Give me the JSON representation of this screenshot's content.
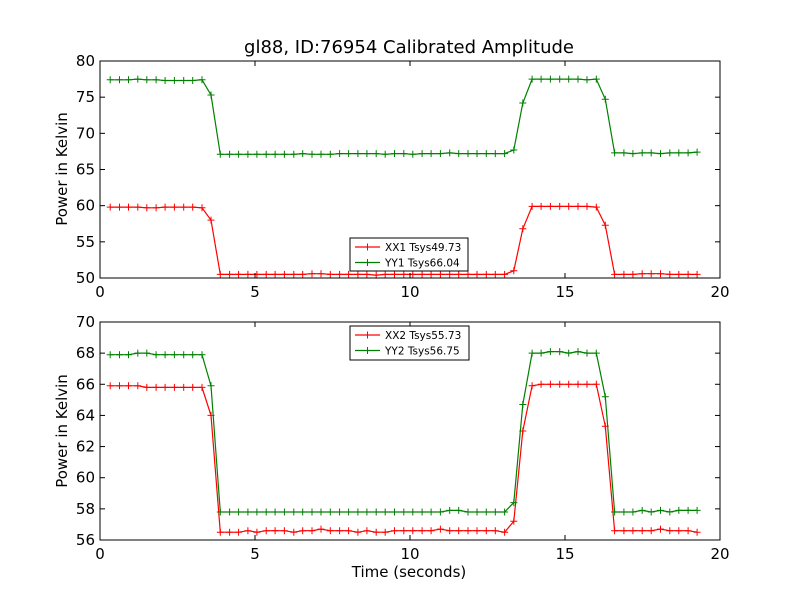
{
  "chart_data": [
    {
      "type": "line",
      "title": "gl88, ID:76954 Calibrated Amplitude",
      "xlabel": "",
      "ylabel": "Power in Kelvin",
      "xlim": [
        0,
        20
      ],
      "ylim": [
        50,
        80
      ],
      "xticks": [
        0,
        5,
        10,
        15,
        20
      ],
      "yticks": [
        50,
        55,
        60,
        65,
        70,
        75,
        80
      ],
      "legend_position": "bottom-center",
      "series": [
        {
          "name": "XX1 Tsys49.73",
          "color": "#ff0000",
          "marker": "plus",
          "x": [
            0.33,
            0.63,
            0.92,
            1.22,
            1.51,
            1.81,
            2.1,
            2.4,
            2.7,
            2.99,
            3.29,
            3.58,
            3.88,
            4.18,
            4.47,
            4.77,
            5.06,
            5.36,
            5.65,
            5.95,
            6.25,
            6.54,
            6.84,
            7.13,
            7.43,
            7.73,
            8.02,
            8.32,
            8.61,
            8.91,
            9.2,
            9.5,
            9.8,
            10.09,
            10.39,
            10.68,
            10.98,
            11.28,
            11.57,
            11.87,
            12.16,
            12.46,
            12.75,
            13.05,
            13.35,
            13.64,
            13.94,
            14.23,
            14.53,
            14.83,
            15.12,
            15.42,
            15.71,
            16.01,
            16.3,
            16.6,
            16.9,
            17.19,
            17.49,
            17.78,
            18.08,
            18.38,
            18.67,
            18.97,
            19.26
          ],
          "y": [
            59.8,
            59.8,
            59.8,
            59.8,
            59.7,
            59.7,
            59.8,
            59.8,
            59.8,
            59.8,
            59.7,
            58.0,
            50.5,
            50.5,
            50.5,
            50.5,
            50.5,
            50.5,
            50.5,
            50.5,
            50.5,
            50.5,
            50.6,
            50.6,
            50.5,
            50.5,
            50.5,
            50.5,
            50.5,
            50.4,
            50.5,
            50.5,
            50.5,
            50.5,
            50.5,
            50.5,
            50.5,
            50.5,
            50.5,
            50.5,
            50.5,
            50.5,
            50.5,
            50.5,
            51.0,
            56.8,
            59.9,
            59.9,
            59.9,
            59.9,
            59.9,
            59.9,
            59.9,
            59.8,
            57.3,
            50.5,
            50.5,
            50.5,
            50.6,
            50.6,
            50.6,
            50.5,
            50.5,
            50.5,
            50.5
          ]
        },
        {
          "name": "YY1 Tsys66.04",
          "color": "#008000",
          "marker": "plus",
          "x": [
            0.33,
            0.63,
            0.92,
            1.22,
            1.51,
            1.81,
            2.1,
            2.4,
            2.7,
            2.99,
            3.29,
            3.58,
            3.88,
            4.18,
            4.47,
            4.77,
            5.06,
            5.36,
            5.65,
            5.95,
            6.25,
            6.54,
            6.84,
            7.13,
            7.43,
            7.73,
            8.02,
            8.32,
            8.61,
            8.91,
            9.2,
            9.5,
            9.8,
            10.09,
            10.39,
            10.68,
            10.98,
            11.28,
            11.57,
            11.87,
            12.16,
            12.46,
            12.75,
            13.05,
            13.35,
            13.64,
            13.94,
            14.23,
            14.53,
            14.83,
            15.12,
            15.42,
            15.71,
            16.01,
            16.3,
            16.6,
            16.9,
            17.19,
            17.49,
            17.78,
            18.08,
            18.38,
            18.67,
            18.97,
            19.26
          ],
          "y": [
            77.4,
            77.4,
            77.4,
            77.5,
            77.4,
            77.4,
            77.3,
            77.3,
            77.3,
            77.3,
            77.4,
            75.3,
            67.1,
            67.1,
            67.1,
            67.1,
            67.1,
            67.1,
            67.1,
            67.1,
            67.1,
            67.2,
            67.1,
            67.1,
            67.1,
            67.2,
            67.2,
            67.2,
            67.2,
            67.2,
            67.1,
            67.2,
            67.2,
            67.1,
            67.2,
            67.2,
            67.2,
            67.3,
            67.2,
            67.2,
            67.2,
            67.2,
            67.2,
            67.2,
            67.7,
            74.2,
            77.5,
            77.5,
            77.5,
            77.5,
            77.5,
            77.5,
            77.4,
            77.5,
            74.7,
            67.3,
            67.3,
            67.2,
            67.3,
            67.3,
            67.2,
            67.3,
            67.3,
            67.3,
            67.4
          ]
        }
      ]
    },
    {
      "type": "line",
      "title": "",
      "xlabel": "Time (seconds)",
      "ylabel": "Power in Kelvin",
      "xlim": [
        0,
        20
      ],
      "ylim": [
        56,
        70
      ],
      "xticks": [
        0,
        5,
        10,
        15,
        20
      ],
      "yticks": [
        56,
        58,
        60,
        62,
        64,
        66,
        68,
        70
      ],
      "legend_position": "top-center",
      "series": [
        {
          "name": "XX2 Tsys55.73",
          "color": "#ff0000",
          "marker": "plus",
          "x": [
            0.33,
            0.63,
            0.92,
            1.22,
            1.51,
            1.81,
            2.1,
            2.4,
            2.7,
            2.99,
            3.29,
            3.58,
            3.88,
            4.18,
            4.47,
            4.77,
            5.06,
            5.36,
            5.65,
            5.95,
            6.25,
            6.54,
            6.84,
            7.13,
            7.43,
            7.73,
            8.02,
            8.32,
            8.61,
            8.91,
            9.2,
            9.5,
            9.8,
            10.09,
            10.39,
            10.68,
            10.98,
            11.28,
            11.57,
            11.87,
            12.16,
            12.46,
            12.75,
            13.05,
            13.35,
            13.64,
            13.94,
            14.23,
            14.53,
            14.83,
            15.12,
            15.42,
            15.71,
            16.01,
            16.3,
            16.6,
            16.9,
            17.19,
            17.49,
            17.78,
            18.08,
            18.38,
            18.67,
            18.97,
            19.26
          ],
          "y": [
            65.9,
            65.9,
            65.9,
            65.9,
            65.8,
            65.8,
            65.8,
            65.8,
            65.8,
            65.8,
            65.8,
            64.0,
            56.5,
            56.5,
            56.5,
            56.6,
            56.5,
            56.6,
            56.6,
            56.6,
            56.5,
            56.6,
            56.6,
            56.7,
            56.6,
            56.6,
            56.6,
            56.5,
            56.6,
            56.5,
            56.5,
            56.6,
            56.6,
            56.6,
            56.6,
            56.6,
            56.7,
            56.6,
            56.6,
            56.6,
            56.6,
            56.6,
            56.6,
            56.5,
            57.2,
            63.0,
            65.9,
            66.0,
            66.0,
            66.0,
            66.0,
            66.0,
            66.0,
            66.0,
            63.3,
            56.6,
            56.6,
            56.6,
            56.6,
            56.6,
            56.7,
            56.6,
            56.6,
            56.6,
            56.5
          ]
        },
        {
          "name": "YY2 Tsys56.75",
          "color": "#008000",
          "marker": "plus",
          "x": [
            0.33,
            0.63,
            0.92,
            1.22,
            1.51,
            1.81,
            2.1,
            2.4,
            2.7,
            2.99,
            3.29,
            3.58,
            3.88,
            4.18,
            4.47,
            4.77,
            5.06,
            5.36,
            5.65,
            5.95,
            6.25,
            6.54,
            6.84,
            7.13,
            7.43,
            7.73,
            8.02,
            8.32,
            8.61,
            8.91,
            9.2,
            9.5,
            9.8,
            10.09,
            10.39,
            10.68,
            10.98,
            11.28,
            11.57,
            11.87,
            12.16,
            12.46,
            12.75,
            13.05,
            13.35,
            13.64,
            13.94,
            14.23,
            14.53,
            14.83,
            15.12,
            15.42,
            15.71,
            16.01,
            16.3,
            16.6,
            16.9,
            17.19,
            17.49,
            17.78,
            18.08,
            18.38,
            18.67,
            18.97,
            19.26
          ],
          "y": [
            67.9,
            67.9,
            67.9,
            68.0,
            68.0,
            67.9,
            67.9,
            67.9,
            67.9,
            67.9,
            67.9,
            65.9,
            57.8,
            57.8,
            57.8,
            57.8,
            57.8,
            57.8,
            57.8,
            57.8,
            57.8,
            57.8,
            57.8,
            57.8,
            57.8,
            57.8,
            57.8,
            57.8,
            57.8,
            57.8,
            57.8,
            57.8,
            57.8,
            57.8,
            57.8,
            57.8,
            57.8,
            57.9,
            57.9,
            57.8,
            57.8,
            57.8,
            57.8,
            57.8,
            58.4,
            64.7,
            68.0,
            68.0,
            68.1,
            68.1,
            68.0,
            68.1,
            68.0,
            68.0,
            65.2,
            57.8,
            57.8,
            57.8,
            57.9,
            57.8,
            57.9,
            57.8,
            57.9,
            57.9,
            57.9
          ]
        }
      ]
    }
  ]
}
